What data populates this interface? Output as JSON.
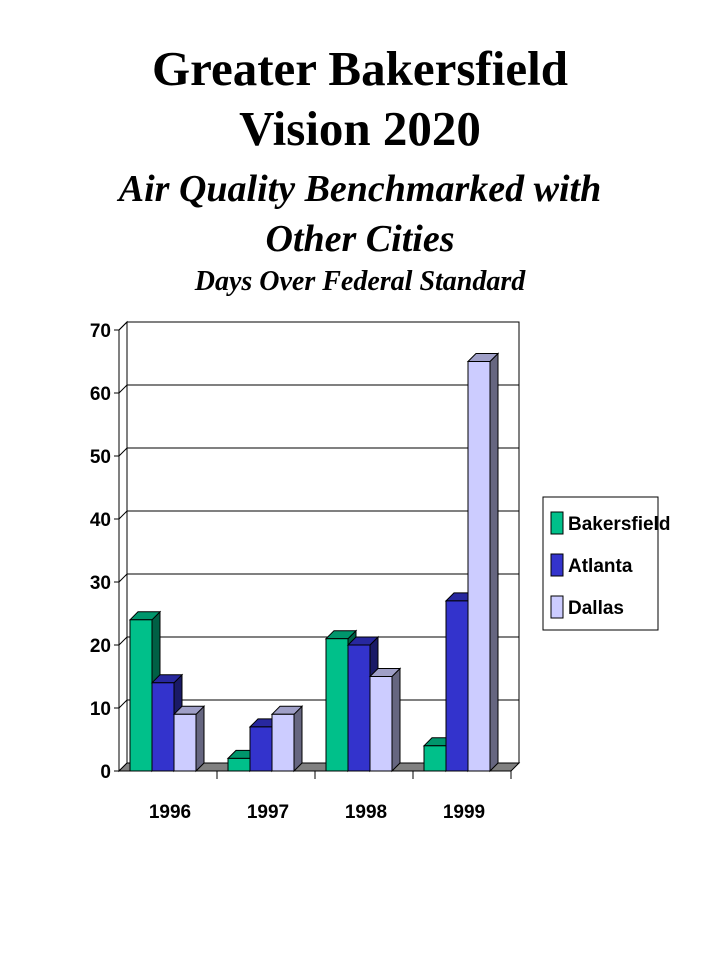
{
  "titles": {
    "line1": "Greater Bakersfield",
    "line2": "Vision 2020",
    "subtitle1": "Air Quality Benchmarked with",
    "subtitle2": "Other Cities",
    "chart_title": "Days Over Federal Standard"
  },
  "chart_data": {
    "type": "bar",
    "title": "Days Over Federal Standard",
    "categories": [
      "1996",
      "1997",
      "1998",
      "1999"
    ],
    "series": [
      {
        "name": "Bakersfield",
        "values": [
          24,
          2,
          21,
          4
        ],
        "color": "#00c08a"
      },
      {
        "name": "Atlanta",
        "values": [
          14,
          7,
          20,
          27
        ],
        "color": "#3333cc"
      },
      {
        "name": "Dallas",
        "values": [
          9,
          9,
          15,
          65
        ],
        "color": "#ccccff"
      }
    ],
    "yticks": [
      0,
      10,
      20,
      30,
      40,
      50,
      60,
      70
    ],
    "ylim": [
      0,
      70
    ],
    "grid": true,
    "legend_position": "right",
    "style": "3d-bar"
  }
}
